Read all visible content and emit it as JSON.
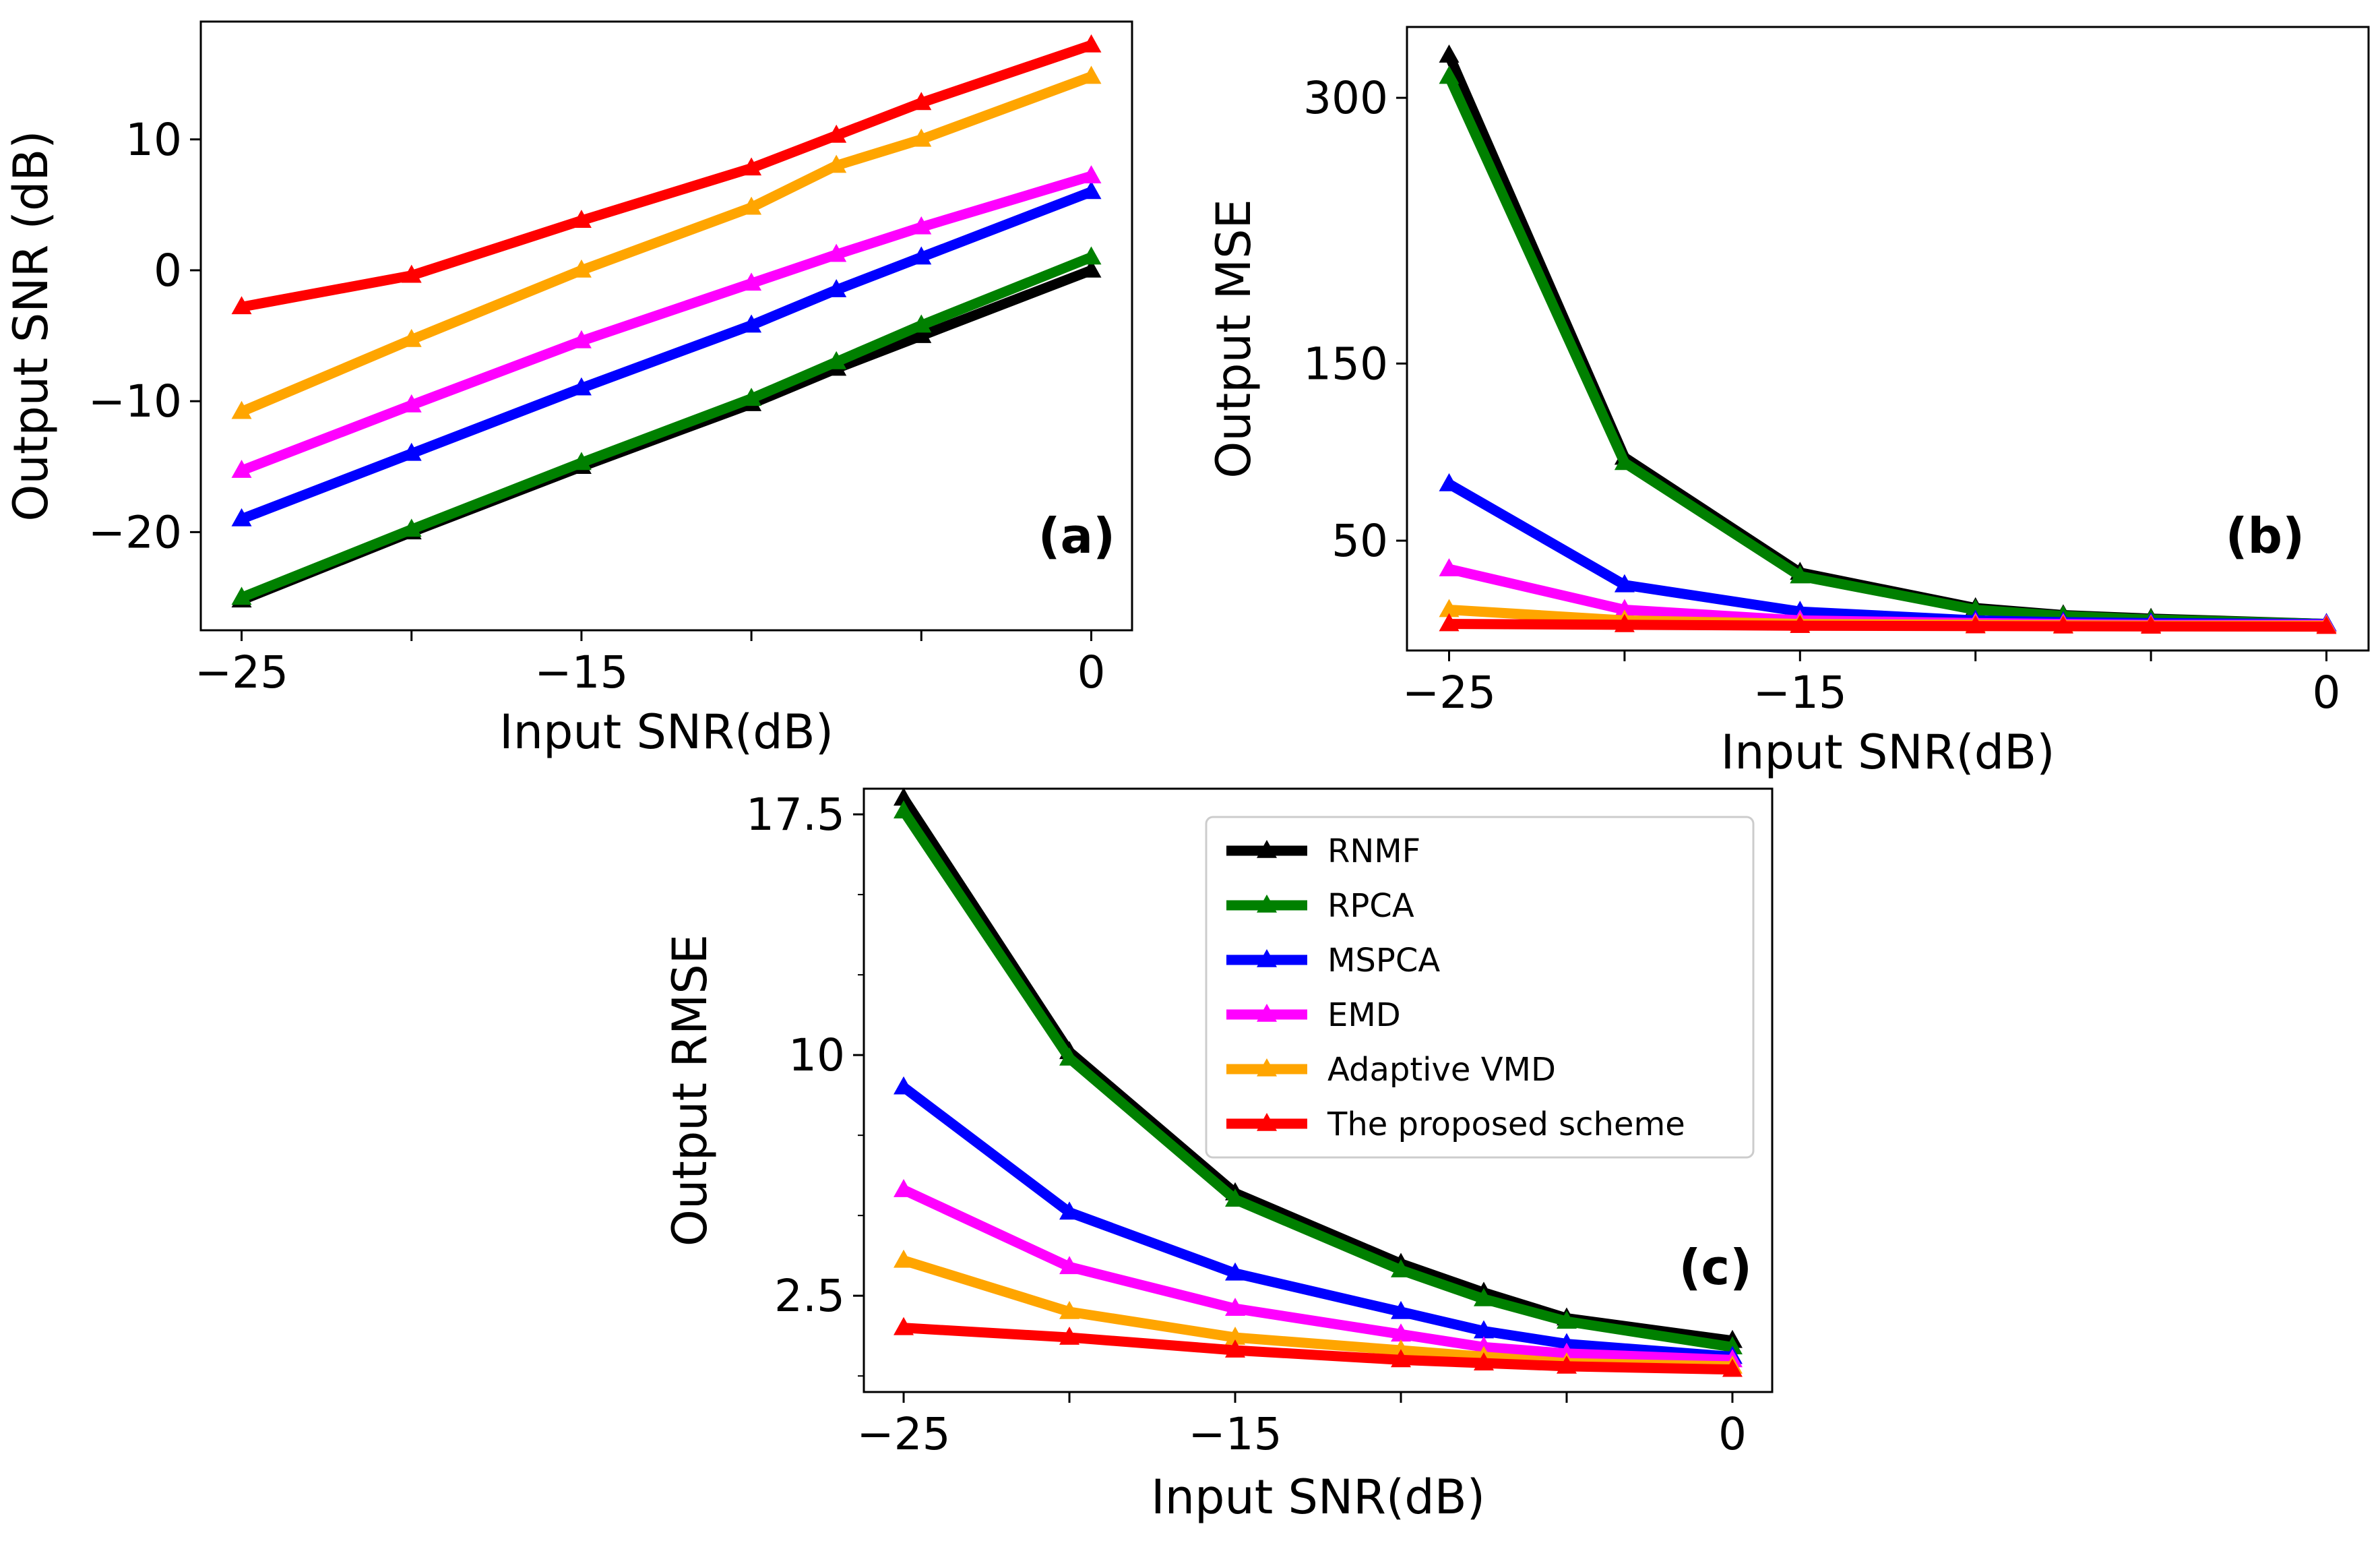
{
  "colors": {
    "RNMF": "#000000",
    "RPCA": "#008000",
    "MSPCA": "#0000ff",
    "EMD": "#ff00ff",
    "Adaptive VMD": "#ffa500",
    "The proposed scheme": "#ff0000"
  },
  "legend": {
    "entries": [
      "RNMF",
      "RPCA",
      "MSPCA",
      "EMD",
      "Adaptive VMD",
      "The proposed scheme"
    ]
  },
  "chart_data": [
    {
      "id": "a",
      "type": "line",
      "panel_tag": "(a)",
      "xlabel": "Input SNR(dB)",
      "ylabel": "Output SNR (dB)",
      "x": [
        -25,
        -20,
        -15,
        -10,
        -7.5,
        -5,
        0
      ],
      "xlim": [
        -26.2,
        1.2
      ],
      "ylim": [
        -27.5,
        19.0
      ],
      "xticks": [
        -25,
        -20,
        -15,
        -10,
        -5,
        0
      ],
      "xtick_labels": [
        "−25",
        "",
        "−15",
        "",
        "",
        "0"
      ],
      "yticks": [
        -20,
        -10,
        0,
        10
      ],
      "ytick_labels": [
        "−20",
        "−10",
        "0",
        "10"
      ],
      "yminor": [],
      "series": [
        {
          "name": "RNMF",
          "values": [
            -25.2,
            -20.0,
            -15.0,
            -10.2,
            -7.5,
            -5.0,
            0.0
          ]
        },
        {
          "name": "RPCA",
          "values": [
            -25.0,
            -19.8,
            -14.7,
            -9.8,
            -7.0,
            -4.2,
            1.0
          ]
        },
        {
          "name": "MSPCA",
          "values": [
            -19.0,
            -14.0,
            -9.0,
            -4.2,
            -1.5,
            1.0,
            6.0
          ]
        },
        {
          "name": "EMD",
          "values": [
            -15.3,
            -10.3,
            -5.4,
            -1.0,
            1.2,
            3.3,
            7.2
          ]
        },
        {
          "name": "Adaptive VMD",
          "values": [
            -10.8,
            -5.3,
            0.0,
            4.8,
            8.0,
            10.0,
            14.8
          ]
        },
        {
          "name": "The proposed scheme",
          "values": [
            -2.8,
            -0.4,
            3.8,
            7.8,
            10.3,
            12.8,
            17.2
          ]
        }
      ]
    },
    {
      "id": "b",
      "type": "line",
      "panel_tag": "(b)",
      "xlabel": "Input SNR(dB)",
      "ylabel": "Output MSE",
      "x": [
        -25,
        -20,
        -15,
        -10,
        -7.5,
        -5,
        0
      ],
      "xlim": [
        -26.2,
        1.2
      ],
      "ylim": [
        -12,
        340
      ],
      "xticks": [
        -25,
        -20,
        -15,
        -10,
        -5,
        0
      ],
      "xtick_labels": [
        "−25",
        "",
        "−15",
        "",
        "",
        "0"
      ],
      "yticks": [
        50,
        150,
        300
      ],
      "ytick_labels": [
        "50",
        "150",
        "300"
      ],
      "yminor": [],
      "series": [
        {
          "name": "RNMF",
          "values": [
            324,
            97,
            32,
            12,
            8,
            6,
            3
          ]
        },
        {
          "name": "RPCA",
          "values": [
            312,
            94,
            30,
            11,
            7.5,
            5.5,
            3
          ]
        },
        {
          "name": "MSPCA",
          "values": [
            82,
            25,
            10,
            5,
            4,
            3.5,
            3
          ]
        },
        {
          "name": "EMD",
          "values": [
            34,
            11,
            5,
            3.5,
            3,
            2.5,
            2.5
          ]
        },
        {
          "name": "Adaptive VMD",
          "values": [
            11,
            5,
            3,
            2.5,
            2.2,
            2,
            2
          ]
        },
        {
          "name": "The proposed scheme",
          "values": [
            3,
            2.5,
            2,
            1.8,
            1.7,
            1.6,
            1.5
          ]
        }
      ]
    },
    {
      "id": "c",
      "type": "line",
      "panel_tag": "(c)",
      "xlabel": "Input SNR(dB)",
      "ylabel": "Output RMSE",
      "x": [
        -25,
        -20,
        -15,
        -10,
        -7.5,
        -5,
        0
      ],
      "xlim": [
        -26.2,
        1.2
      ],
      "ylim": [
        -0.5,
        18.3
      ],
      "xticks": [
        -25,
        -20,
        -15,
        -10,
        -5,
        0
      ],
      "xtick_labels": [
        "−25",
        "",
        "−15",
        "",
        "",
        "0"
      ],
      "yticks": [
        2.5,
        10,
        17.5
      ],
      "ytick_labels": [
        "2.5",
        "10",
        "17.5"
      ],
      "yminor": [
        0,
        5,
        7.5,
        12.5,
        15
      ],
      "series": [
        {
          "name": "RNMF",
          "values": [
            18.0,
            10.1,
            5.7,
            3.5,
            2.6,
            1.8,
            1.1
          ]
        },
        {
          "name": "RPCA",
          "values": [
            17.6,
            9.9,
            5.5,
            3.3,
            2.4,
            1.7,
            0.9
          ]
        },
        {
          "name": "MSPCA",
          "values": [
            9.0,
            5.1,
            3.2,
            2.0,
            1.4,
            1.0,
            0.6
          ]
        },
        {
          "name": "EMD",
          "values": [
            5.8,
            3.4,
            2.1,
            1.3,
            0.9,
            0.7,
            0.5
          ]
        },
        {
          "name": "Adaptive VMD",
          "values": [
            3.6,
            2.0,
            1.2,
            0.8,
            0.6,
            0.4,
            0.3
          ]
        },
        {
          "name": "The proposed scheme",
          "values": [
            1.5,
            1.2,
            0.8,
            0.5,
            0.4,
            0.3,
            0.2
          ]
        }
      ]
    }
  ]
}
